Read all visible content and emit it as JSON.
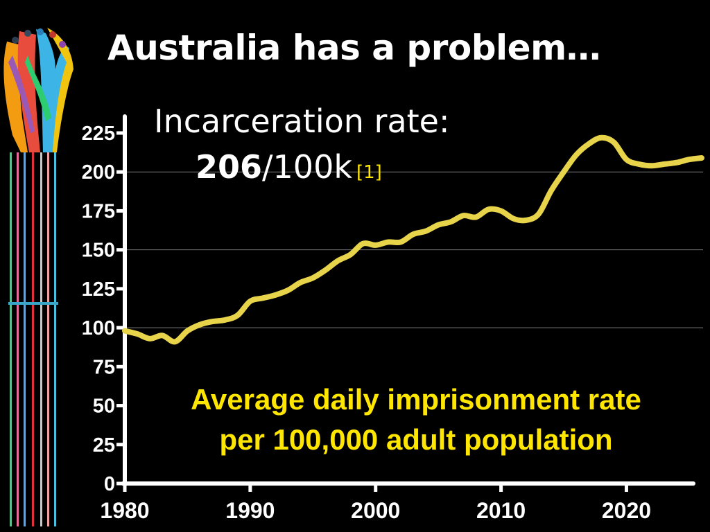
{
  "slide": {
    "title": "Australia has a problem…",
    "rate_heading": "Incarceration rate:",
    "rate_value": "206",
    "rate_unit": "/100k",
    "citation": "[1]",
    "caption_line1": "Average daily imprisonment rate",
    "caption_line2": "per 100,000 adult population"
  },
  "colors": {
    "background": "#000000",
    "line": "#e8d44a",
    "caption": "#ffe600",
    "axis": "#ffffff"
  },
  "logo": {
    "icon": "hands-with-people-logo-icon"
  },
  "chart_data": {
    "type": "line",
    "title": "",
    "xlabel": "",
    "ylabel": "",
    "xlim": [
      1980,
      2026
    ],
    "ylim": [
      0,
      225
    ],
    "x_ticks": [
      1980,
      1990,
      2000,
      2010,
      2020
    ],
    "y_ticks": [
      0,
      25,
      50,
      75,
      100,
      125,
      150,
      175,
      200,
      225
    ],
    "grid": {
      "horizontal": true,
      "lines_at": [
        100,
        150,
        200
      ]
    },
    "series": [
      {
        "x": [
          1980,
          1981,
          1982,
          1983,
          1984,
          1985,
          1986,
          1987,
          1988,
          1989,
          1990,
          1991,
          1992,
          1993,
          1994,
          1995,
          1996,
          1997,
          1998,
          1999,
          2000,
          2001,
          2002,
          2003,
          2004,
          2005,
          2006,
          2007,
          2008,
          2009,
          2010,
          2011,
          2012,
          2013,
          2014,
          2015,
          2016,
          2017,
          2018,
          2019,
          2020,
          2021,
          2022,
          2023,
          2024,
          2025,
          2026
        ],
        "y": [
          98,
          96,
          93,
          95,
          91,
          98,
          102,
          104,
          105,
          108,
          117,
          119,
          121,
          124,
          129,
          132,
          137,
          143,
          147,
          154,
          153,
          155,
          155,
          160,
          162,
          166,
          168,
          172,
          171,
          176,
          175,
          170,
          169,
          173,
          188,
          200,
          211,
          218,
          222,
          219,
          208,
          205,
          204,
          205,
          206,
          208,
          209
        ]
      }
    ]
  }
}
